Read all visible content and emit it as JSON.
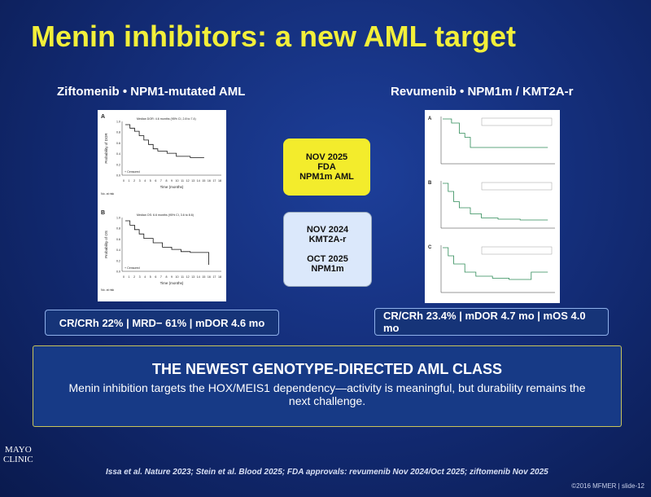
{
  "title": "Menin inhibitors: a new AML target",
  "left": {
    "heading": "Ziftomenib • NPM1-mutated AML",
    "stat": "CR/CRh 22%  |  MRD− 61%  |  mDOR 4.6 mo",
    "figure": {
      "panels": [
        {
          "label": "A",
          "note": "Median DOR: 4.6 months (95% CI, 2.8 to 7.4)",
          "ylabel": "Probability of DOR",
          "xlabel": "Time (months)",
          "censor": "+ Censored",
          "risk": "No. at risk"
        },
        {
          "label": "B",
          "note": "Median OS: 6.6 months (95% CI, 3.6 to 8.6)",
          "ylabel": "Probability of OS",
          "xlabel": "Time (months)",
          "censor": "+ Censored",
          "risk": "No. at risk"
        }
      ],
      "yticks": [
        "1.0",
        "0.8",
        "0.6",
        "0.4",
        "0.2",
        "0.0"
      ],
      "xticks": [
        0,
        1,
        2,
        3,
        4,
        5,
        6,
        7,
        8,
        9,
        10,
        11,
        12,
        13,
        14,
        15,
        16,
        17,
        18
      ]
    }
  },
  "right": {
    "heading": "Revumenib • NPM1m / KMT2A-r",
    "stat": "CR/CRh 23.4%  |  mDOR 4.7 mo  |  mOS 4.0 mo",
    "figure": {
      "panels": [
        {
          "label": "A"
        },
        {
          "label": "B"
        },
        {
          "label": "C"
        }
      ]
    }
  },
  "approval_fda": {
    "lines": [
      "NOV 2025",
      "FDA",
      "NPM1m AML"
    ]
  },
  "approval_kmt2a": {
    "lines": [
      "NOV 2024",
      "KMT2A-r",
      "OCT 2025",
      "NPM1m"
    ]
  },
  "banner": {
    "title": "THE NEWEST GENOTYPE-DIRECTED AML CLASS",
    "body": "Menin inhibition targets the HOX/MEIS1 dependency—activity is meaningful, but durability remains the next challenge."
  },
  "logo": {
    "lines": [
      "MAYO",
      "CLINIC"
    ]
  },
  "footnote": "Issa et al. Nature 2023; Stein et al. Blood 2025; FDA approvals: revumenib Nov 2024/Oct 2025; ziftomenib Nov 2025",
  "copyright": "©2016 MFMER  |  slide-12"
}
